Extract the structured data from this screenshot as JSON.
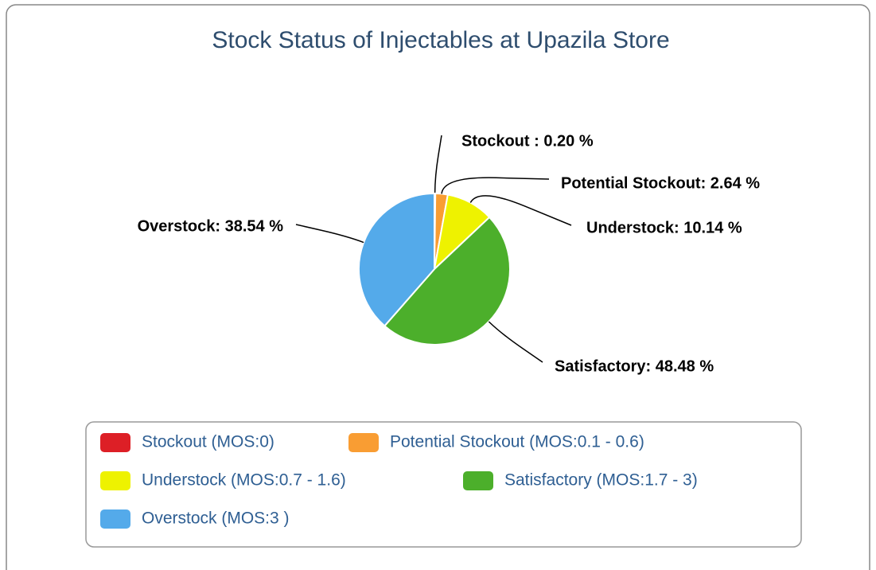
{
  "chart_data": {
    "type": "pie",
    "title": "Stock Status of Injectables at Upazila Store",
    "categories": [
      "Stockout  (MOS:0)",
      "Potential Stockout (MOS:0.1 - 0.6)",
      "Understock (MOS:0.7 - 1.6)",
      "Satisfactory (MOS:1.7 - 3)",
      "Overstock (MOS:3 )"
    ],
    "values": [
      0.2,
      2.64,
      10.14,
      48.48,
      38.54
    ],
    "value_labels": [
      "Stockout : 0.20 %",
      "Potential Stockout: 2.64 %",
      "Understock: 10.14 %",
      "Satisfactory: 48.48 %",
      "Overstock: 38.54 %"
    ],
    "colors": [
      "#dd1f26",
      "#f99d33",
      "#eef200",
      "#4caf2b",
      "#54aaea"
    ]
  }
}
